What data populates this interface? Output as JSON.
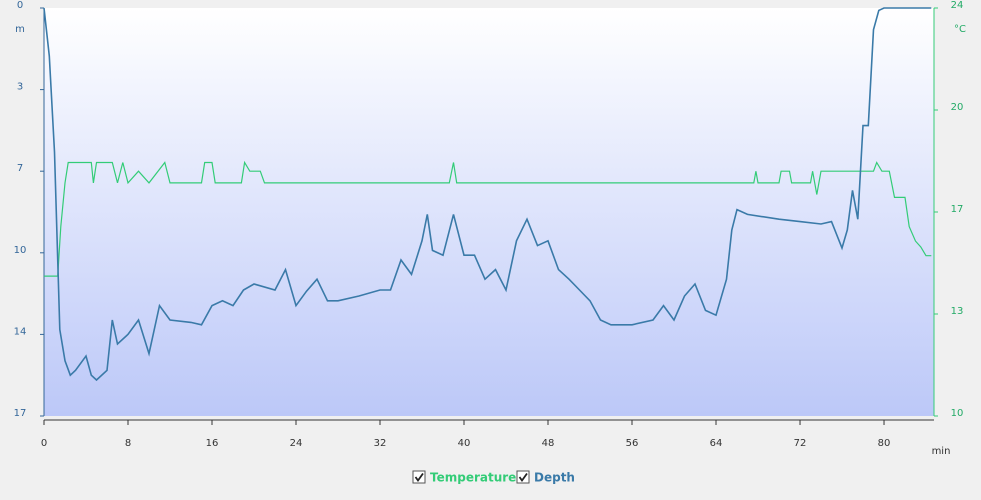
{
  "chart_data": {
    "type": "line",
    "xlabel": "min",
    "ylabel": "m",
    "y2label": "°C",
    "xlim": [
      0,
      84.76
    ],
    "xticks": [
      0,
      8,
      16,
      24,
      32,
      40,
      48,
      56,
      64,
      72,
      80
    ],
    "ylim": [
      17,
      0
    ],
    "yticks": [
      0,
      {
        "value": 3.4,
        "label": "3"
      },
      {
        "value": 6.8,
        "label": "7"
      },
      {
        "value": 10.2,
        "label": "10"
      },
      {
        "value": 13.6,
        "label": "14"
      },
      17
    ],
    "y2lim": [
      10,
      24
    ],
    "y2ticks": [
      10,
      {
        "value": 13.5,
        "label": "13"
      },
      17,
      {
        "value": 20.5,
        "label": "20"
      },
      24
    ],
    "series": [
      {
        "name": "Temperature",
        "color": "#33cc77",
        "axis": "y2",
        "x": [
          0,
          1.3,
          1.6,
          2,
          2.3,
          4.5,
          4.7,
          5,
          6.5,
          7,
          7.5,
          8,
          9,
          10,
          11.5,
          12,
          15,
          15.3,
          16,
          16.3,
          18.8,
          19.1,
          19.6,
          20.6,
          21,
          38.6,
          39,
          39.3,
          67.6,
          67.8,
          68,
          70,
          70.2,
          71,
          71.2,
          73,
          73.2,
          73.6,
          74,
          79,
          79.3,
          79.8,
          80.5,
          81,
          82,
          82.4,
          83,
          83.5,
          84,
          84.5
        ],
        "values": [
          14.8,
          14.8,
          16.5,
          18,
          18.7,
          18.7,
          18,
          18.7,
          18.7,
          18,
          18.7,
          18,
          18.4,
          18,
          18.7,
          18,
          18,
          18.7,
          18.7,
          18,
          18,
          18.7,
          18.4,
          18.4,
          18,
          18,
          18.7,
          18,
          18,
          18.4,
          18,
          18,
          18.4,
          18.4,
          18,
          18,
          18.4,
          17.6,
          18.4,
          18.4,
          18.7,
          18.4,
          18.4,
          17.5,
          17.5,
          16.5,
          16,
          15.8,
          15.5,
          15.5
        ]
      },
      {
        "name": "Depth",
        "color": "#3a7aa8",
        "x": [
          0,
          0.5,
          1,
          1.5,
          2,
          2.5,
          3,
          4,
          4.5,
          5,
          6,
          6.5,
          7,
          8,
          9,
          10,
          11,
          12,
          14,
          15,
          16,
          17,
          18,
          19,
          20,
          22,
          23,
          24,
          25,
          26,
          27,
          28,
          30,
          32,
          33,
          34,
          35,
          36,
          36.5,
          37,
          38,
          39,
          40,
          41,
          42,
          43,
          44,
          45,
          46,
          47,
          48,
          49,
          50,
          51,
          52,
          53,
          54,
          56,
          58,
          59,
          60,
          61,
          62,
          63,
          64,
          65,
          65.5,
          66,
          67,
          70,
          72,
          74,
          75,
          76,
          76.5,
          77,
          77.5,
          78,
          78.5,
          79,
          79.5,
          80,
          84.5
        ],
        "values": [
          0,
          2,
          6,
          13.4,
          14.7,
          15.3,
          15.1,
          14.5,
          15.3,
          15.5,
          15.1,
          13,
          14,
          13.6,
          13,
          14.4,
          12.4,
          13,
          13.1,
          13.2,
          12.4,
          12.2,
          12.4,
          11.75,
          11.5,
          11.75,
          10.9,
          12.4,
          11.8,
          11.3,
          12.2,
          12.2,
          12,
          11.75,
          11.75,
          10.5,
          11.1,
          9.7,
          8.6,
          10.1,
          10.3,
          8.6,
          10.3,
          10.3,
          11.3,
          10.9,
          11.75,
          9.7,
          8.8,
          9.9,
          9.7,
          10.9,
          11.3,
          11.75,
          12.2,
          13,
          13.2,
          13.2,
          13,
          12.4,
          13,
          12,
          11.5,
          12.6,
          12.8,
          11.3,
          9.25,
          8.4,
          8.6,
          8.8,
          8.9,
          9,
          8.9,
          10,
          9.25,
          7.6,
          8.8,
          4.9,
          4.9,
          0.9,
          0.1,
          0,
          0
        ]
      }
    ]
  }
}
